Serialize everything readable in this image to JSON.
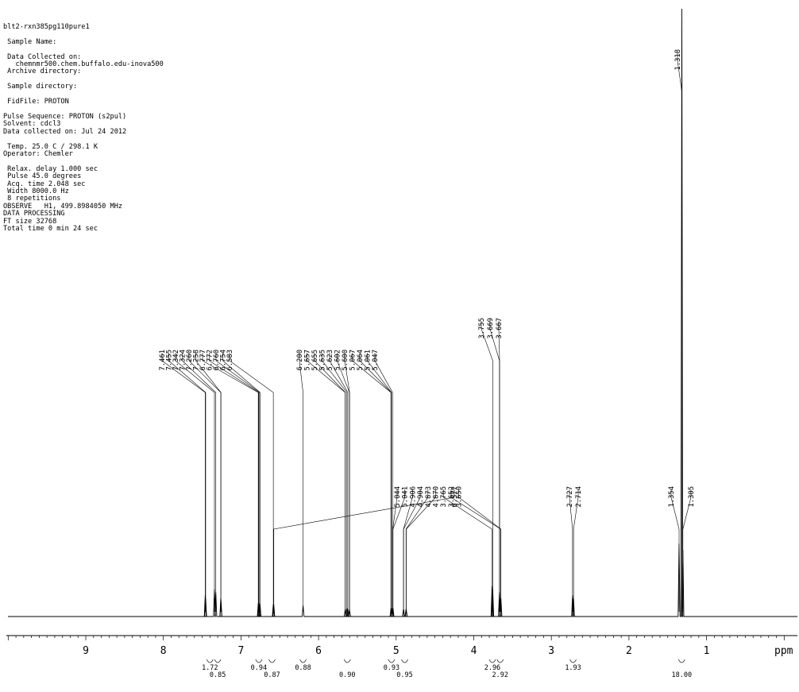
{
  "header": {
    "lines": [
      "blt2-rxn385pg110pure1",
      "",
      " Sample Name:",
      "",
      " Data Collected on:",
      "   chemnmr500.chem.buffalo.edu-inova500",
      " Archive directory:",
      "",
      " Sample directory:",
      "",
      " FidFile: PROTON",
      "",
      "Pulse Sequence: PROTON (s2pul)",
      "Solvent: cdcl3",
      "Data collected on: Jul 24 2012",
      "",
      " Temp. 25.0 C / 298.1 K",
      "Operator: Chemler",
      "",
      " Relax. delay 1.000 sec",
      " Pulse 45.0 degrees",
      " Acq. time 2.048 sec",
      " Width 8000.0 Hz",
      " 8 repetitions",
      "OBSERVE   H1, 499.8984050 MHz",
      "DATA PROCESSING",
      "FT size 32768",
      "Total time 0 min 24 sec"
    ]
  },
  "chart_data": {
    "type": "line",
    "title": "",
    "xlabel": "ppm",
    "ylabel": "",
    "xlim": [
      10.0,
      0.0
    ],
    "x_reversed": true,
    "x_ticks": [
      9,
      8,
      7,
      6,
      5,
      4,
      3,
      2,
      1
    ],
    "grid": false,
    "peaks": [
      {
        "ppm": 7.461,
        "height": 0.035
      },
      {
        "ppm": 7.455,
        "height": 0.03
      },
      {
        "ppm": 7.342,
        "height": 0.045
      },
      {
        "ppm": 7.324,
        "height": 0.04
      },
      {
        "ppm": 7.26,
        "height": 0.03
      },
      {
        "ppm": 7.258,
        "height": 0.028
      },
      {
        "ppm": 6.777,
        "height": 0.022
      },
      {
        "ppm": 6.772,
        "height": 0.02
      },
      {
        "ppm": 6.76,
        "height": 0.022
      },
      {
        "ppm": 6.754,
        "height": 0.02
      },
      {
        "ppm": 6.583,
        "height": 0.02
      },
      {
        "ppm": 6.577,
        "height": 0.02
      },
      {
        "ppm": 6.2,
        "height": 0.018
      },
      {
        "ppm": 5.657,
        "height": 0.012
      },
      {
        "ppm": 5.655,
        "height": 0.012
      },
      {
        "ppm": 5.635,
        "height": 0.014
      },
      {
        "ppm": 5.623,
        "height": 0.012
      },
      {
        "ppm": 5.602,
        "height": 0.012
      },
      {
        "ppm": 5.6,
        "height": 0.01
      },
      {
        "ppm": 5.067,
        "height": 0.014
      },
      {
        "ppm": 5.064,
        "height": 0.014
      },
      {
        "ppm": 5.061,
        "height": 0.014
      },
      {
        "ppm": 5.047,
        "height": 0.014
      },
      {
        "ppm": 5.044,
        "height": 0.014
      },
      {
        "ppm": 5.041,
        "height": 0.014
      },
      {
        "ppm": 4.906,
        "height": 0.012
      },
      {
        "ppm": 4.904,
        "height": 0.012
      },
      {
        "ppm": 4.873,
        "height": 0.012
      },
      {
        "ppm": 4.87,
        "height": 0.012
      },
      {
        "ppm": 3.765,
        "height": 0.05
      },
      {
        "ppm": 3.755,
        "height": 0.045
      },
      {
        "ppm": 3.669,
        "height": 0.04
      },
      {
        "ppm": 3.667,
        "height": 0.04
      },
      {
        "ppm": 3.652,
        "height": 0.03
      },
      {
        "ppm": 3.65,
        "height": 0.03
      },
      {
        "ppm": 2.727,
        "height": 0.035
      },
      {
        "ppm": 2.714,
        "height": 0.03
      },
      {
        "ppm": 1.354,
        "height": 0.12
      },
      {
        "ppm": 1.318,
        "height": 1.0
      },
      {
        "ppm": 1.305,
        "height": 0.11
      }
    ],
    "peak_label_groups": [
      {
        "labels": [
          "7.461",
          "7.455",
          "7.342",
          "7.324",
          "7.260",
          "7.258",
          "6.777",
          "6.772",
          "6.760",
          "6.754",
          "6.583"
        ],
        "row": "upper-left"
      },
      {
        "labels": [
          "6.200",
          "5.657",
          "5.655",
          "5.635",
          "5.623",
          "5.602",
          "5.600",
          "5.067",
          "5.064",
          "5.061",
          "5.047"
        ],
        "row": "upper-mid"
      },
      {
        "labels": [
          "3.755",
          "3.669",
          "3.667"
        ],
        "row": "upper-right"
      },
      {
        "labels": [
          "6.577"
        ],
        "row": "single"
      },
      {
        "labels": [
          "5.044",
          "5.041",
          "4.906",
          "4.904",
          "4.873",
          "4.870",
          "3.765",
          "3.652",
          "3.650"
        ],
        "row": "lower-mid"
      },
      {
        "labels": [
          "2.727",
          "2.714"
        ],
        "row": "lower-right"
      },
      {
        "labels": [
          "1.354",
          "1.305"
        ],
        "row": "lower-far-right"
      },
      {
        "labels": [
          "1.318"
        ],
        "row": "top"
      }
    ],
    "integrals": [
      {
        "ppm": 7.4,
        "value": "1.72"
      },
      {
        "ppm": 7.3,
        "value": "0.85"
      },
      {
        "ppm": 6.77,
        "value": "0.94"
      },
      {
        "ppm": 6.6,
        "value": "0.87"
      },
      {
        "ppm": 6.2,
        "value": "0.88"
      },
      {
        "ppm": 5.63,
        "value": "0.90"
      },
      {
        "ppm": 5.06,
        "value": "0.93"
      },
      {
        "ppm": 4.89,
        "value": "0.95"
      },
      {
        "ppm": 3.76,
        "value": "2.96"
      },
      {
        "ppm": 3.66,
        "value": "2.92"
      },
      {
        "ppm": 2.72,
        "value": "1.93"
      },
      {
        "ppm": 1.32,
        "value": "18.00"
      }
    ]
  }
}
